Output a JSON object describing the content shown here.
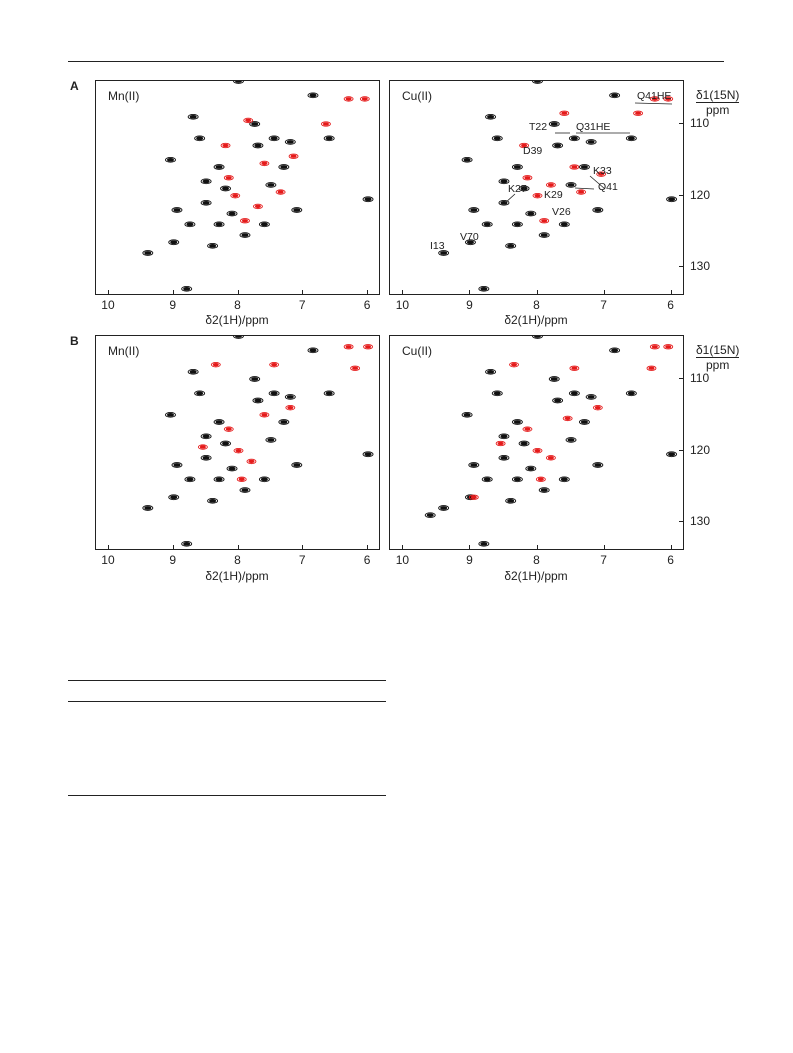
{
  "figure": {
    "panel_a_label": "A",
    "panel_b_label": "B",
    "x_axis_label": "δ2(1H)/ppm",
    "y_axis_label_top": "δ1(15N)",
    "y_axis_label_bottom": "ppm",
    "x_ticks": [
      "10",
      "9",
      "8",
      "7",
      "6"
    ],
    "y_ticks": [
      "110",
      "120",
      "130"
    ],
    "colors": {
      "reference": "#111111",
      "paramagnetic": "#e51a1a"
    },
    "panels": [
      {
        "row": "A",
        "side": "left",
        "metal": "Mn(II)",
        "annotations": []
      },
      {
        "row": "A",
        "side": "right",
        "metal": "Cu(II)",
        "annotations": [
          "Q41HE",
          "T22",
          "Q31HE",
          "D39",
          "K33",
          "Q41",
          "K27",
          "K29",
          "V26",
          "V70",
          "I13"
        ]
      },
      {
        "row": "B",
        "side": "left",
        "metal": "Mn(II)",
        "annotations": []
      },
      {
        "row": "B",
        "side": "right",
        "metal": "Cu(II)",
        "annotations": []
      }
    ]
  },
  "chart_data": [
    {
      "type": "scatter",
      "title": "",
      "metal": "Mn(II)",
      "xlabel": "δ2(1H)/ppm",
      "ylabel": "δ1(15N) ppm",
      "xlim": [
        10.2,
        5.8
      ],
      "ylim": [
        104,
        134
      ],
      "series": [
        {
          "values": [
            [
              9.4,
              128
            ],
            [
              9.0,
              126.5
            ],
            [
              8.8,
              133
            ],
            [
              8.95,
              122
            ],
            [
              9.05,
              115
            ],
            [
              8.7,
              109
            ],
            [
              8.5,
              118
            ],
            [
              8.5,
              121
            ],
            [
              8.3,
              124
            ],
            [
              8.2,
              119
            ],
            [
              8.0,
              104
            ],
            [
              7.75,
              110
            ],
            [
              7.7,
              113
            ],
            [
              7.5,
              118.5
            ],
            [
              7.45,
              112
            ],
            [
              7.2,
              112.5
            ],
            [
              7.1,
              122
            ],
            [
              6.85,
              106
            ],
            [
              6.6,
              112
            ],
            [
              6.0,
              120.5
            ],
            [
              8.6,
              112
            ],
            [
              8.3,
              116
            ],
            [
              8.1,
              122.5
            ],
            [
              7.9,
              125.5
            ],
            [
              7.6,
              124
            ],
            [
              7.3,
              116
            ],
            [
              8.4,
              127
            ],
            [
              8.75,
              124
            ]
          ]
        },
        {
          "values": [
            [
              6.3,
              106.5
            ],
            [
              6.05,
              106.5
            ],
            [
              6.65,
              110
            ],
            [
              7.85,
              109.5
            ],
            [
              8.2,
              113
            ],
            [
              7.6,
              115.5
            ],
            [
              7.15,
              114.5
            ],
            [
              8.05,
              120
            ],
            [
              7.7,
              121.5
            ],
            [
              7.35,
              119.5
            ],
            [
              8.15,
              117.5
            ],
            [
              7.9,
              123.5
            ]
          ]
        }
      ]
    },
    {
      "type": "scatter",
      "title": "",
      "metal": "Cu(II)",
      "xlabel": "δ2(1H)/ppm",
      "ylabel": "δ1(15N) ppm",
      "xlim": [
        10.2,
        5.8
      ],
      "ylim": [
        104,
        134
      ],
      "series": [
        {
          "values": [
            [
              9.4,
              128
            ],
            [
              9.0,
              126.5
            ],
            [
              8.8,
              133
            ],
            [
              8.95,
              122
            ],
            [
              9.05,
              115
            ],
            [
              8.7,
              109
            ],
            [
              8.5,
              118
            ],
            [
              8.5,
              121
            ],
            [
              8.3,
              124
            ],
            [
              8.2,
              119
            ],
            [
              8.0,
              104
            ],
            [
              7.75,
              110
            ],
            [
              7.7,
              113
            ],
            [
              7.5,
              118.5
            ],
            [
              7.45,
              112
            ],
            [
              7.2,
              112.5
            ],
            [
              7.1,
              122
            ],
            [
              6.85,
              106
            ],
            [
              6.6,
              112
            ],
            [
              6.0,
              120.5
            ],
            [
              8.6,
              112
            ],
            [
              8.3,
              116
            ],
            [
              8.1,
              122.5
            ],
            [
              7.9,
              125.5
            ],
            [
              7.6,
              124
            ],
            [
              7.3,
              116
            ],
            [
              8.4,
              127
            ],
            [
              8.75,
              124
            ]
          ]
        },
        {
          "values": [
            [
              6.25,
              106.5
            ],
            [
              6.05,
              106.5
            ],
            [
              6.5,
              108.5
            ],
            [
              7.6,
              108.5
            ],
            [
              8.2,
              113
            ],
            [
              7.45,
              116
            ],
            [
              7.05,
              117
            ],
            [
              8.0,
              120
            ],
            [
              7.8,
              118.5
            ],
            [
              7.35,
              119.5
            ],
            [
              8.15,
              117.5
            ],
            [
              7.9,
              123.5
            ]
          ]
        }
      ]
    },
    {
      "type": "scatter",
      "title": "",
      "metal": "Mn(II)",
      "xlabel": "δ2(1H)/ppm",
      "ylabel": "δ1(15N) ppm",
      "xlim": [
        10.2,
        5.8
      ],
      "ylim": [
        104,
        134
      ],
      "series": [
        {
          "values": [
            [
              9.4,
              128
            ],
            [
              9.0,
              126.5
            ],
            [
              8.8,
              133
            ],
            [
              8.95,
              122
            ],
            [
              9.05,
              115
            ],
            [
              8.7,
              109
            ],
            [
              8.5,
              118
            ],
            [
              8.5,
              121
            ],
            [
              8.3,
              124
            ],
            [
              8.2,
              119
            ],
            [
              8.0,
              104
            ],
            [
              7.75,
              110
            ],
            [
              7.7,
              113
            ],
            [
              7.5,
              118.5
            ],
            [
              7.45,
              112
            ],
            [
              7.2,
              112.5
            ],
            [
              7.1,
              122
            ],
            [
              6.85,
              106
            ],
            [
              6.6,
              112
            ],
            [
              6.0,
              120.5
            ],
            [
              8.6,
              112
            ],
            [
              8.3,
              116
            ],
            [
              8.1,
              122.5
            ],
            [
              7.9,
              125.5
            ],
            [
              7.6,
              124
            ],
            [
              7.3,
              116
            ],
            [
              8.4,
              127
            ],
            [
              8.75,
              124
            ]
          ]
        },
        {
          "values": [
            [
              6.3,
              105.5
            ],
            [
              6.0,
              105.5
            ],
            [
              6.2,
              108.5
            ],
            [
              7.45,
              108
            ],
            [
              8.35,
              108
            ],
            [
              7.6,
              115
            ],
            [
              7.2,
              114
            ],
            [
              8.0,
              120
            ],
            [
              8.55,
              119.5
            ],
            [
              7.8,
              121.5
            ],
            [
              8.15,
              117
            ],
            [
              7.95,
              124
            ]
          ]
        }
      ]
    },
    {
      "type": "scatter",
      "title": "",
      "metal": "Cu(II)",
      "xlabel": "δ2(1H)/ppm",
      "ylabel": "δ1(15N) ppm",
      "xlim": [
        10.2,
        5.8
      ],
      "ylim": [
        104,
        134
      ],
      "series": [
        {
          "values": [
            [
              9.4,
              128
            ],
            [
              9.0,
              126.5
            ],
            [
              8.8,
              133
            ],
            [
              8.95,
              122
            ],
            [
              9.05,
              115
            ],
            [
              8.7,
              109
            ],
            [
              8.5,
              118
            ],
            [
              8.5,
              121
            ],
            [
              8.3,
              124
            ],
            [
              8.2,
              119
            ],
            [
              8.0,
              104
            ],
            [
              7.75,
              110
            ],
            [
              7.7,
              113
            ],
            [
              7.5,
              118.5
            ],
            [
              7.45,
              112
            ],
            [
              7.2,
              112.5
            ],
            [
              7.1,
              122
            ],
            [
              6.85,
              106
            ],
            [
              6.6,
              112
            ],
            [
              6.0,
              120.5
            ],
            [
              8.6,
              112
            ],
            [
              8.3,
              116
            ],
            [
              8.1,
              122.5
            ],
            [
              7.9,
              125.5
            ],
            [
              7.6,
              124
            ],
            [
              7.3,
              116
            ],
            [
              8.4,
              127
            ],
            [
              8.75,
              124
            ],
            [
              9.6,
              129
            ]
          ]
        },
        {
          "values": [
            [
              6.25,
              105.5
            ],
            [
              6.05,
              105.5
            ],
            [
              6.3,
              108.5
            ],
            [
              7.45,
              108.5
            ],
            [
              8.35,
              108
            ],
            [
              7.55,
              115.5
            ],
            [
              7.1,
              114
            ],
            [
              8.0,
              120
            ],
            [
              8.55,
              119
            ],
            [
              7.8,
              121
            ],
            [
              8.15,
              117
            ],
            [
              7.95,
              124
            ],
            [
              8.95,
              126.5
            ]
          ]
        }
      ]
    }
  ]
}
